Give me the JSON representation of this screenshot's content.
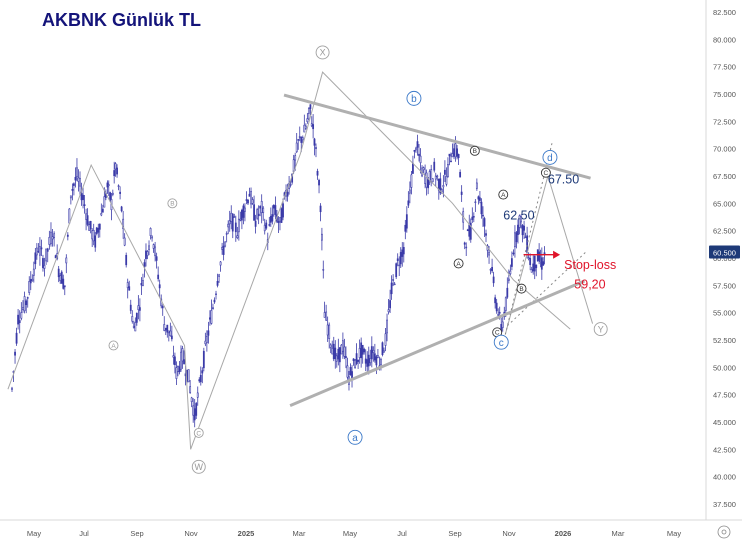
{
  "chart_data": {
    "type": "candlestick",
    "title": "AKBNK Günlük TL",
    "xlabel": "",
    "ylabel": "",
    "ylim": [
      37.5,
      83.5
    ],
    "y_ticks": [
      "82.500",
      "80.000",
      "77.500",
      "75.000",
      "72.500",
      "70.000",
      "67.500",
      "65.000",
      "62.500",
      "60.000",
      "57.500",
      "55.000",
      "52.500",
      "50.000",
      "47.500",
      "45.000",
      "42.500",
      "40.000",
      "37.500"
    ],
    "x_ticks": [
      "May",
      "Jul",
      "Sep",
      "Nov",
      "2025",
      "Mar",
      "May",
      "Jul",
      "Sep",
      "Nov",
      "2026",
      "Mar",
      "May"
    ],
    "current_price": "60.500",
    "colors": {
      "candles": "#3a3aa8",
      "wave_lines": "#a8a8a8",
      "trendlines": "#b0b0b0",
      "label_blue": "#3a78c8",
      "stop": "#e0142a",
      "price_tag": "#1e3a78"
    },
    "price_series": [
      {
        "x": 0.0,
        "y": 48.0
      },
      {
        "x": 0.3,
        "y": 54.5
      },
      {
        "x": 0.7,
        "y": 56.0
      },
      {
        "x": 1.0,
        "y": 58.5
      },
      {
        "x": 1.3,
        "y": 61.0
      },
      {
        "x": 1.6,
        "y": 59.5
      },
      {
        "x": 2.0,
        "y": 62.5
      },
      {
        "x": 2.3,
        "y": 59.0
      },
      {
        "x": 2.6,
        "y": 57.5
      },
      {
        "x": 2.9,
        "y": 66.0
      },
      {
        "x": 3.2,
        "y": 67.5
      },
      {
        "x": 3.5,
        "y": 65.5
      },
      {
        "x": 3.8,
        "y": 63.0
      },
      {
        "x": 4.1,
        "y": 61.5
      },
      {
        "x": 4.4,
        "y": 64.0
      },
      {
        "x": 4.7,
        "y": 66.5
      },
      {
        "x": 4.9,
        "y": 65.0
      },
      {
        "x": 5.1,
        "y": 68.5
      },
      {
        "x": 5.4,
        "y": 64.5
      },
      {
        "x": 5.7,
        "y": 58.0
      },
      {
        "x": 6.0,
        "y": 53.5
      },
      {
        "x": 6.3,
        "y": 56.0
      },
      {
        "x": 6.6,
        "y": 60.5
      },
      {
        "x": 6.9,
        "y": 62.5
      },
      {
        "x": 7.2,
        "y": 58.5
      },
      {
        "x": 7.5,
        "y": 54.0
      },
      {
        "x": 7.8,
        "y": 53.0
      },
      {
        "x": 8.1,
        "y": 49.5
      },
      {
        "x": 8.4,
        "y": 51.0
      },
      {
        "x": 8.7,
        "y": 49.0
      },
      {
        "x": 9.0,
        "y": 45.5
      },
      {
        "x": 9.3,
        "y": 49.0
      },
      {
        "x": 9.6,
        "y": 52.5
      },
      {
        "x": 9.9,
        "y": 55.5
      },
      {
        "x": 10.2,
        "y": 59.0
      },
      {
        "x": 10.5,
        "y": 61.5
      },
      {
        "x": 10.8,
        "y": 63.5
      },
      {
        "x": 11.1,
        "y": 62.5
      },
      {
        "x": 11.4,
        "y": 64.5
      },
      {
        "x": 11.7,
        "y": 66.0
      },
      {
        "x": 12.0,
        "y": 63.5
      },
      {
        "x": 12.3,
        "y": 64.5
      },
      {
        "x": 12.6,
        "y": 62.0
      },
      {
        "x": 12.9,
        "y": 64.5
      },
      {
        "x": 13.2,
        "y": 63.0
      },
      {
        "x": 13.5,
        "y": 66.0
      },
      {
        "x": 13.8,
        "y": 67.5
      },
      {
        "x": 14.1,
        "y": 70.5
      },
      {
        "x": 14.4,
        "y": 71.5
      },
      {
        "x": 14.7,
        "y": 73.5
      },
      {
        "x": 14.9,
        "y": 71.0
      },
      {
        "x": 15.2,
        "y": 65.0
      },
      {
        "x": 15.4,
        "y": 55.0
      },
      {
        "x": 15.7,
        "y": 52.5
      },
      {
        "x": 16.0,
        "y": 50.5
      },
      {
        "x": 16.3,
        "y": 52.0
      },
      {
        "x": 16.6,
        "y": 49.0
      },
      {
        "x": 16.9,
        "y": 50.5
      },
      {
        "x": 17.2,
        "y": 51.5
      },
      {
        "x": 17.5,
        "y": 50.5
      },
      {
        "x": 17.8,
        "y": 51.5
      },
      {
        "x": 18.1,
        "y": 50.5
      },
      {
        "x": 18.4,
        "y": 52.5
      },
      {
        "x": 18.7,
        "y": 57.0
      },
      {
        "x": 19.0,
        "y": 59.5
      },
      {
        "x": 19.3,
        "y": 61.0
      },
      {
        "x": 19.6,
        "y": 66.0
      },
      {
        "x": 19.9,
        "y": 70.5
      },
      {
        "x": 20.2,
        "y": 68.0
      },
      {
        "x": 20.5,
        "y": 67.0
      },
      {
        "x": 20.8,
        "y": 68.0
      },
      {
        "x": 21.1,
        "y": 66.5
      },
      {
        "x": 21.4,
        "y": 67.5
      },
      {
        "x": 21.7,
        "y": 70.0
      },
      {
        "x": 22.0,
        "y": 69.5
      },
      {
        "x": 22.3,
        "y": 61.5
      },
      {
        "x": 22.6,
        "y": 62.5
      },
      {
        "x": 22.9,
        "y": 66.5
      },
      {
        "x": 23.2,
        "y": 64.0
      },
      {
        "x": 23.5,
        "y": 60.5
      },
      {
        "x": 23.8,
        "y": 56.5
      },
      {
        "x": 24.1,
        "y": 53.5
      },
      {
        "x": 24.4,
        "y": 56.5
      },
      {
        "x": 24.7,
        "y": 61.0
      },
      {
        "x": 25.0,
        "y": 63.5
      },
      {
        "x": 25.3,
        "y": 62.0
      },
      {
        "x": 25.6,
        "y": 59.0
      },
      {
        "x": 25.9,
        "y": 60.0
      },
      {
        "x": 26.1,
        "y": 59.5
      },
      {
        "x": 26.3,
        "y": 60.5
      }
    ],
    "wave_path": [
      {
        "x": -0.2,
        "y": 48.0
      },
      {
        "x": 3.9,
        "y": 68.5
      },
      {
        "x": 8.5,
        "y": 52.0
      },
      {
        "x": 8.8,
        "y": 42.5
      },
      {
        "x": 14.2,
        "y": 69.5
      },
      {
        "x": 15.3,
        "y": 77.0
      },
      {
        "x": 21.7,
        "y": 65.0
      },
      {
        "x": 24.7,
        "y": 58.0
      },
      {
        "x": 27.5,
        "y": 53.5
      }
    ],
    "upper_trendline": [
      {
        "x": 13.4,
        "y": 74.9
      },
      {
        "x": 28.5,
        "y": 67.3
      }
    ],
    "lower_trendline": [
      {
        "x": 13.7,
        "y": 46.5
      },
      {
        "x": 28.2,
        "y": 57.9
      }
    ],
    "projection_path": [
      {
        "x": 24.3,
        "y": 53.0
      },
      {
        "x": 26.4,
        "y": 67.5
      },
      {
        "x": 28.6,
        "y": 54.0
      }
    ],
    "dotted_channel": [
      {
        "x1": 24.3,
        "y1": 53.0,
        "x2": 26.6,
        "y2": 70.5
      },
      {
        "x1": 24.4,
        "y1": 53.8,
        "x2": 28.3,
        "y2": 60.6
      }
    ],
    "wave_labels": [
      {
        "text": "X",
        "x": 15.3,
        "y": 78.8,
        "style": "circle-gray"
      },
      {
        "text": "b",
        "x": 19.8,
        "y": 74.6,
        "style": "circle-blue"
      },
      {
        "text": "B",
        "x": 7.9,
        "y": 65.0,
        "style": "circle-small-gray"
      },
      {
        "text": "A",
        "x": 5.0,
        "y": 52.0,
        "style": "circle-small-gray"
      },
      {
        "text": "C",
        "x": 9.2,
        "y": 44.0,
        "style": "circle-small-gray"
      },
      {
        "text": "W",
        "x": 9.2,
        "y": 40.9,
        "style": "circle-gray"
      },
      {
        "text": "a",
        "x": 16.9,
        "y": 43.6,
        "style": "circle-blue"
      },
      {
        "text": "B",
        "x": 22.8,
        "y": 69.8,
        "style": "circle-small-dark"
      },
      {
        "text": "A",
        "x": 22.0,
        "y": 59.5,
        "style": "circle-small-dark"
      },
      {
        "text": "A",
        "x": 24.2,
        "y": 65.8,
        "style": "circle-small-dark"
      },
      {
        "text": "B",
        "x": 25.1,
        "y": 57.2,
        "style": "circle-small-dark"
      },
      {
        "text": "C",
        "x": 23.9,
        "y": 53.2,
        "style": "circle-small-dark"
      },
      {
        "text": "c",
        "x": 24.1,
        "y": 52.3,
        "style": "circle-blue"
      },
      {
        "text": "C",
        "x": 26.3,
        "y": 67.8,
        "style": "circle-small-dark"
      },
      {
        "text": "d",
        "x": 26.5,
        "y": 69.2,
        "style": "circle-blue"
      },
      {
        "text": "Y",
        "x": 29.0,
        "y": 53.5,
        "style": "circle-gray"
      }
    ],
    "annotations": [
      {
        "text": "67.50",
        "x": 26.4,
        "y": 66.8,
        "color": "#1e3a78"
      },
      {
        "text": "62.50",
        "x": 24.2,
        "y": 63.5,
        "color": "#1e3a78"
      },
      {
        "text": "Stop-loss",
        "x": 27.2,
        "y": 59.0,
        "color": "#e0142a"
      },
      {
        "text": "59,20",
        "x": 27.7,
        "y": 57.2,
        "color": "#e0142a"
      }
    ],
    "stop_arrow": {
      "x1": 25.2,
      "y1": 60.3,
      "x2": 27.0,
      "y2": 60.3
    }
  }
}
